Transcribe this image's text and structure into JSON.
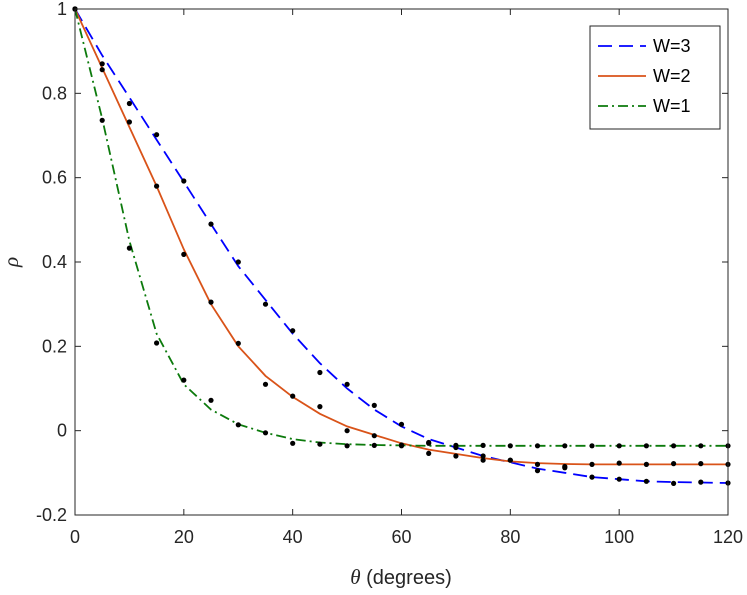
{
  "chart_data": {
    "type": "line",
    "xlabel": {
      "symbol": "θ",
      "text": " (degrees)"
    },
    "ylabel": "ρ",
    "xlim": [
      0,
      120
    ],
    "ylim": [
      -0.2,
      1
    ],
    "x_ticks": [
      0,
      20,
      40,
      60,
      80,
      100,
      120
    ],
    "y_ticks": [
      -0.2,
      0,
      0.2,
      0.4,
      0.6,
      0.8,
      1
    ],
    "x_tick_labels": [
      "0",
      "20",
      "40",
      "60",
      "80",
      "100",
      "120"
    ],
    "y_tick_labels": [
      "-0.2",
      "0",
      "0.2",
      "0.4",
      "0.6",
      "0.8",
      "1"
    ],
    "grid": false,
    "legend_position": "top-right",
    "legend": [
      "W=3",
      "W=2",
      "W=1"
    ],
    "series": [
      {
        "name": "W=3",
        "color": "#0000ff",
        "style": "dashed",
        "curve": [
          [
            0,
            1.0
          ],
          [
            5,
            0.89
          ],
          [
            10,
            0.79
          ],
          [
            15,
            0.69
          ],
          [
            20,
            0.59
          ],
          [
            25,
            0.49
          ],
          [
            30,
            0.39
          ],
          [
            35,
            0.31
          ],
          [
            40,
            0.23
          ],
          [
            45,
            0.16
          ],
          [
            50,
            0.1
          ],
          [
            55,
            0.05
          ],
          [
            60,
            0.01
          ],
          [
            65,
            -0.02
          ],
          [
            70,
            -0.04
          ],
          [
            75,
            -0.06
          ],
          [
            80,
            -0.075
          ],
          [
            85,
            -0.09
          ],
          [
            90,
            -0.1
          ],
          [
            95,
            -0.11
          ],
          [
            100,
            -0.115
          ],
          [
            105,
            -0.12
          ],
          [
            110,
            -0.122
          ],
          [
            115,
            -0.123
          ],
          [
            120,
            -0.124
          ]
        ],
        "points": [
          [
            0,
            1.0
          ],
          [
            5,
            0.87
          ],
          [
            10,
            0.776
          ],
          [
            15,
            0.702
          ],
          [
            20,
            0.592
          ],
          [
            25,
            0.49
          ],
          [
            30,
            0.4
          ],
          [
            35,
            0.3
          ],
          [
            40,
            0.237
          ],
          [
            45,
            0.138
          ],
          [
            50,
            0.11
          ],
          [
            55,
            0.06
          ],
          [
            60,
            0.015
          ],
          [
            65,
            -0.03
          ],
          [
            70,
            -0.04
          ],
          [
            75,
            -0.06
          ],
          [
            80,
            -0.07
          ],
          [
            85,
            -0.095
          ],
          [
            90,
            -0.088
          ],
          [
            95,
            -0.11
          ],
          [
            100,
            -0.115
          ],
          [
            105,
            -0.12
          ],
          [
            110,
            -0.125
          ],
          [
            115,
            -0.122
          ],
          [
            120,
            -0.124
          ]
        ]
      },
      {
        "name": "W=2",
        "color": "#d95319",
        "style": "solid",
        "curve": [
          [
            0,
            1.0
          ],
          [
            5,
            0.86
          ],
          [
            10,
            0.72
          ],
          [
            15,
            0.58
          ],
          [
            20,
            0.43
          ],
          [
            25,
            0.3
          ],
          [
            30,
            0.2
          ],
          [
            35,
            0.13
          ],
          [
            40,
            0.08
          ],
          [
            45,
            0.04
          ],
          [
            50,
            0.01
          ],
          [
            55,
            -0.01
          ],
          [
            60,
            -0.03
          ],
          [
            65,
            -0.045
          ],
          [
            70,
            -0.055
          ],
          [
            75,
            -0.065
          ],
          [
            80,
            -0.073
          ],
          [
            85,
            -0.077
          ],
          [
            90,
            -0.079
          ],
          [
            95,
            -0.08
          ],
          [
            100,
            -0.08
          ],
          [
            105,
            -0.08
          ],
          [
            110,
            -0.08
          ],
          [
            115,
            -0.08
          ],
          [
            120,
            -0.08
          ]
        ],
        "points": [
          [
            0,
            1.0
          ],
          [
            5,
            0.856
          ],
          [
            10,
            0.732
          ],
          [
            15,
            0.58
          ],
          [
            20,
            0.418
          ],
          [
            25,
            0.305
          ],
          [
            30,
            0.207
          ],
          [
            35,
            0.11
          ],
          [
            40,
            0.082
          ],
          [
            45,
            0.057
          ],
          [
            50,
            0.0
          ],
          [
            55,
            -0.012
          ],
          [
            60,
            -0.036
          ],
          [
            65,
            -0.054
          ],
          [
            70,
            -0.06
          ],
          [
            75,
            -0.07
          ],
          [
            80,
            -0.07
          ],
          [
            85,
            -0.08
          ],
          [
            90,
            -0.085
          ],
          [
            95,
            -0.08
          ],
          [
            100,
            -0.077
          ],
          [
            105,
            -0.08
          ],
          [
            110,
            -0.078
          ],
          [
            115,
            -0.078
          ],
          [
            120,
            -0.08
          ]
        ]
      },
      {
        "name": "W=1",
        "color": "#0c7a0c",
        "style": "dashdot",
        "curve": [
          [
            0,
            1.0
          ],
          [
            5,
            0.74
          ],
          [
            10,
            0.45
          ],
          [
            15,
            0.23
          ],
          [
            20,
            0.11
          ],
          [
            25,
            0.05
          ],
          [
            30,
            0.015
          ],
          [
            35,
            -0.005
          ],
          [
            40,
            -0.02
          ],
          [
            45,
            -0.028
          ],
          [
            50,
            -0.032
          ],
          [
            55,
            -0.034
          ],
          [
            60,
            -0.035
          ],
          [
            65,
            -0.036
          ],
          [
            70,
            -0.036
          ],
          [
            75,
            -0.036
          ],
          [
            80,
            -0.036
          ],
          [
            85,
            -0.036
          ],
          [
            90,
            -0.036
          ],
          [
            95,
            -0.036
          ],
          [
            100,
            -0.036
          ],
          [
            105,
            -0.036
          ],
          [
            110,
            -0.036
          ],
          [
            115,
            -0.036
          ],
          [
            120,
            -0.036
          ]
        ],
        "points": [
          [
            0,
            1.0
          ],
          [
            5,
            0.736
          ],
          [
            10,
            0.433
          ],
          [
            15,
            0.208
          ],
          [
            20,
            0.12
          ],
          [
            25,
            0.072
          ],
          [
            30,
            0.014
          ],
          [
            35,
            -0.005
          ],
          [
            40,
            -0.03
          ],
          [
            45,
            -0.032
          ],
          [
            50,
            -0.036
          ],
          [
            55,
            -0.035
          ],
          [
            60,
            -0.034
          ],
          [
            65,
            -0.028
          ],
          [
            70,
            -0.035
          ],
          [
            75,
            -0.035
          ],
          [
            80,
            -0.036
          ],
          [
            85,
            -0.036
          ],
          [
            90,
            -0.036
          ],
          [
            95,
            -0.036
          ],
          [
            100,
            -0.036
          ],
          [
            105,
            -0.036
          ],
          [
            110,
            -0.036
          ],
          [
            115,
            -0.036
          ],
          [
            120,
            -0.036
          ]
        ]
      }
    ]
  }
}
